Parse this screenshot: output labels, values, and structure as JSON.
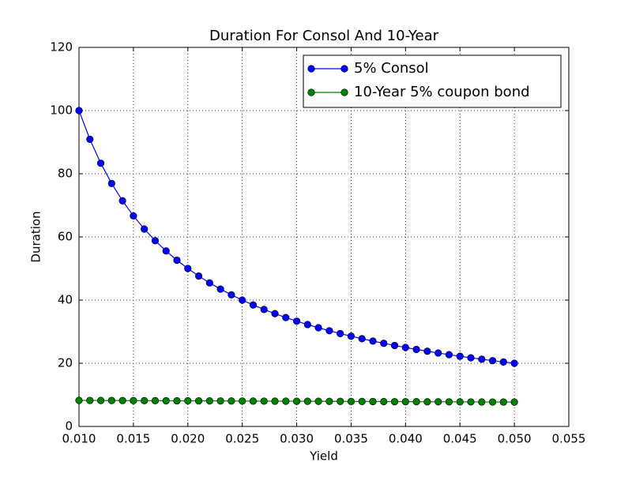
{
  "chart_data": {
    "type": "line",
    "title": "Duration For Consol And 10-Year",
    "xlabel": "Yield",
    "ylabel": "Duration",
    "x": [
      0.01,
      0.011,
      0.012,
      0.013,
      0.014,
      0.015,
      0.016,
      0.017,
      0.018,
      0.019,
      0.02,
      0.021,
      0.022,
      0.023,
      0.024,
      0.025,
      0.026,
      0.027,
      0.028,
      0.029,
      0.03,
      0.031,
      0.032,
      0.033,
      0.034,
      0.035,
      0.036,
      0.037,
      0.038,
      0.039,
      0.04,
      0.041,
      0.042,
      0.043,
      0.044,
      0.045,
      0.046,
      0.047,
      0.048,
      0.049,
      0.05
    ],
    "series": [
      {
        "name": "5% Consol",
        "color": "#0000ff",
        "values": [
          100,
          90.91,
          83.33,
          76.92,
          71.43,
          66.67,
          62.5,
          58.82,
          55.56,
          52.63,
          50,
          47.62,
          45.45,
          43.48,
          41.67,
          40,
          38.46,
          37.04,
          35.71,
          34.48,
          33.33,
          32.26,
          31.25,
          30.3,
          29.41,
          28.57,
          27.78,
          27.03,
          26.32,
          25.64,
          25,
          24.39,
          23.81,
          23.26,
          22.73,
          22.22,
          21.74,
          21.28,
          20.83,
          20.41,
          20
        ]
      },
      {
        "name": "10-Year 5% coupon bond",
        "color": "#008000",
        "values": [
          8.25,
          8.24,
          8.22,
          8.21,
          8.2,
          8.18,
          8.17,
          8.16,
          8.14,
          8.13,
          8.12,
          8.1,
          8.09,
          8.08,
          8.06,
          8.05,
          8.04,
          8.02,
          8.01,
          8.0,
          7.98,
          7.97,
          7.96,
          7.94,
          7.93,
          7.92,
          7.9,
          7.89,
          7.88,
          7.86,
          7.85,
          7.84,
          7.82,
          7.81,
          7.8,
          7.78,
          7.77,
          7.76,
          7.74,
          7.73,
          7.72
        ]
      }
    ],
    "xlim": [
      0.01,
      0.055
    ],
    "ylim": [
      0,
      120
    ],
    "xticks": [
      {
        "value": 0.01,
        "label": "0.010"
      },
      {
        "value": 0.015,
        "label": "0.015"
      },
      {
        "value": 0.02,
        "label": "0.020"
      },
      {
        "value": 0.025,
        "label": "0.025"
      },
      {
        "value": 0.03,
        "label": "0.030"
      },
      {
        "value": 0.035,
        "label": "0.035"
      },
      {
        "value": 0.04,
        "label": "0.040"
      },
      {
        "value": 0.045,
        "label": "0.045"
      },
      {
        "value": 0.05,
        "label": "0.050"
      },
      {
        "value": 0.055,
        "label": "0.055"
      }
    ],
    "yticks": [
      0,
      20,
      40,
      60,
      80,
      100,
      120
    ],
    "grid": true,
    "legend": "upper right"
  }
}
